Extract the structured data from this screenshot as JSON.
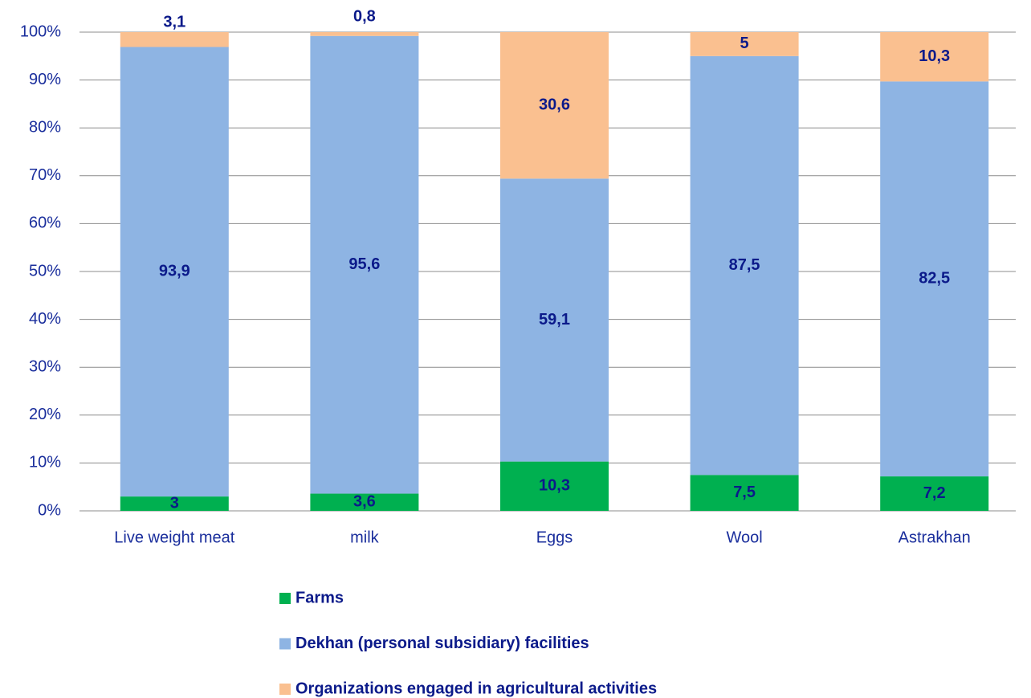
{
  "chart_data": {
    "type": "stacked_bar",
    "categories": [
      "Live weight meat",
      "milk",
      "Eggs",
      "Wool",
      "Astrakhan"
    ],
    "series": [
      {
        "name": "Farms",
        "color": "#00b050",
        "values": [
          3,
          3.6,
          10.3,
          7.5,
          7.2
        ],
        "value_labels": [
          "3",
          "3,6",
          "10,3",
          "7,5",
          "7,2"
        ]
      },
      {
        "name": "Dekhan (personal subsidiary) facilities",
        "color": "#8eb4e3",
        "values": [
          93.9,
          95.6,
          59.1,
          87.5,
          82.5
        ],
        "value_labels": [
          "93,9",
          "95,6",
          "59,1",
          "87,5",
          "82,5"
        ]
      },
      {
        "name": "Organizations engaged in agricultural activities",
        "color": "#fac090",
        "values": [
          3.1,
          0.8,
          30.6,
          5,
          10.3
        ],
        "value_labels": [
          "3,1",
          "0,8",
          "30,6",
          "5",
          "10,3"
        ]
      }
    ],
    "ylim": [
      0,
      100
    ],
    "yticks": [
      {
        "value": 0,
        "label": "0%"
      },
      {
        "value": 10,
        "label": "10%"
      },
      {
        "value": 20,
        "label": "20%"
      },
      {
        "value": 30,
        "label": "30%"
      },
      {
        "value": 40,
        "label": "40%"
      },
      {
        "value": 50,
        "label": "50%"
      },
      {
        "value": 60,
        "label": "60%"
      },
      {
        "value": 70,
        "label": "70%"
      },
      {
        "value": 80,
        "label": "80%"
      },
      {
        "value": 90,
        "label": "90%"
      },
      {
        "value": 100,
        "label": "100%"
      }
    ],
    "grid": true
  }
}
